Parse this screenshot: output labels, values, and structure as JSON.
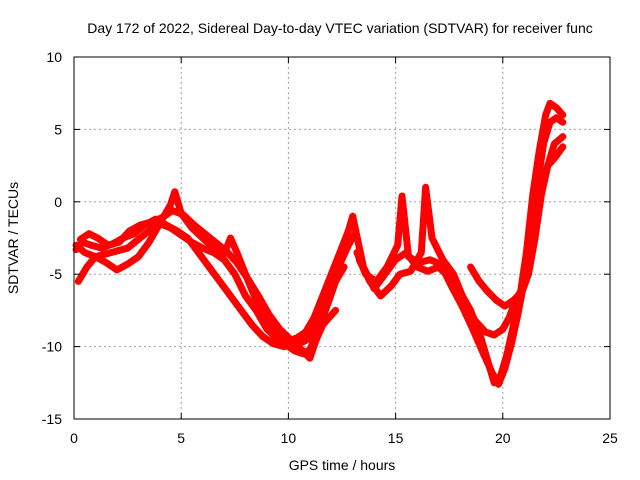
{
  "chart_data": {
    "type": "line",
    "title": "Day 172 of 2022, Sidereal Day-to-day VTEC variation (SDTVAR) for receiver func",
    "xlabel": "GPS time / hours",
    "ylabel": "SDTVAR / TECUs",
    "xlim": [
      0,
      25
    ],
    "ylim": [
      -15,
      10
    ],
    "x_ticks": [
      0,
      5,
      10,
      15,
      20,
      25
    ],
    "y_ticks": [
      -15,
      -10,
      -5,
      0,
      5,
      10
    ],
    "x_tick_labels": [
      "0",
      "5",
      "10",
      "15",
      "20",
      "25"
    ],
    "y_tick_labels": [
      "-15",
      "-10",
      "-5",
      "0",
      "5",
      "10"
    ],
    "grid": true,
    "legend": "none",
    "series_color": "#ff0000",
    "series": [
      {
        "name": "track-1",
        "x": [
          0.1,
          0.4,
          0.8,
          1.3,
          1.8,
          2.3,
          2.8,
          3.3,
          3.8,
          4.3,
          4.8,
          5.3,
          5.8,
          6.3,
          6.8,
          7.3,
          7.8,
          8.3,
          8.8,
          9.3,
          9.8,
          10.2,
          10.6,
          11.0,
          11.3,
          11.6,
          11.9,
          12.2
        ],
        "y": [
          -3.3,
          -2.8,
          -3.0,
          -3.2,
          -2.9,
          -2.5,
          -2.2,
          -1.6,
          -1.2,
          -1.6,
          -2.0,
          -2.5,
          -3.5,
          -4.5,
          -5.5,
          -6.5,
          -7.5,
          -8.5,
          -9.3,
          -9.8,
          -10.0,
          -9.7,
          -10.2,
          -10.8,
          -9.5,
          -8.5,
          -8.0,
          -7.5
        ]
      },
      {
        "name": "track-2",
        "x": [
          0.2,
          0.6,
          1.0,
          1.5,
          2.0,
          2.5,
          3.0,
          3.5,
          4.0,
          4.5,
          5.0,
          5.5,
          6.0,
          6.5,
          7.0,
          7.5,
          8.0,
          8.5,
          9.0,
          9.5,
          10.0,
          10.3,
          10.7,
          11.0,
          11.3,
          11.6,
          11.9,
          12.2,
          12.6
        ],
        "y": [
          -5.5,
          -4.5,
          -3.8,
          -3.6,
          -3.4,
          -3.2,
          -2.6,
          -2.0,
          -1.5,
          -1.8,
          -2.3,
          -2.8,
          -3.2,
          -3.5,
          -4.0,
          -5.0,
          -6.5,
          -7.5,
          -8.8,
          -9.5,
          -10.0,
          -10.3,
          -10.5,
          -10.2,
          -9.3,
          -8.0,
          -6.8,
          -5.5,
          -4.5
        ]
      },
      {
        "name": "track-3",
        "x": [
          0.3,
          0.7,
          1.1,
          1.6,
          2.1,
          2.6,
          3.1,
          3.6,
          4.1,
          4.6,
          5.1,
          5.6,
          6.1,
          6.6,
          7.1,
          7.6,
          8.1,
          8.6,
          9.1,
          9.6,
          10.1,
          10.5,
          10.9,
          11.2,
          11.6,
          12.0,
          12.4,
          12.8,
          13.1
        ],
        "y": [
          -2.6,
          -2.2,
          -2.5,
          -3.0,
          -2.8,
          -2.0,
          -1.6,
          -1.4,
          -1.1,
          -0.6,
          -0.9,
          -1.6,
          -2.2,
          -2.8,
          -3.4,
          -4.2,
          -5.3,
          -6.5,
          -7.8,
          -8.8,
          -9.5,
          -9.8,
          -9.5,
          -8.8,
          -7.2,
          -5.8,
          -4.3,
          -3.0,
          -2.2
        ]
      },
      {
        "name": "track-4",
        "x": [
          0.1,
          0.5,
          1.0,
          1.5,
          2.0,
          2.5,
          3.0,
          3.5,
          4.0,
          4.5,
          4.7,
          5.0,
          5.5,
          6.0,
          6.5,
          7.0,
          7.3,
          7.6,
          8.0,
          8.5,
          9.0,
          9.5,
          10.0,
          10.4,
          10.8,
          11.2,
          11.6,
          12.0,
          12.4,
          12.8,
          13.0
        ],
        "y": [
          -3.0,
          -3.5,
          -3.8,
          -4.2,
          -4.7,
          -4.3,
          -3.8,
          -2.8,
          -1.5,
          -0.2,
          0.7,
          -0.8,
          -1.8,
          -2.5,
          -3.2,
          -3.6,
          -2.5,
          -3.5,
          -5.0,
          -6.8,
          -8.3,
          -9.3,
          -9.6,
          -9.4,
          -9.0,
          -8.0,
          -6.5,
          -5.0,
          -3.5,
          -2.0,
          -1.0
        ]
      },
      {
        "name": "track-5",
        "x": [
          13.0,
          13.5,
          14.0,
          14.5,
          15.0,
          15.5,
          16.0,
          16.5,
          17.0,
          17.5,
          18.0,
          18.5,
          19.0,
          19.3,
          19.6,
          19.9,
          20.2,
          20.5,
          20.8,
          21.1,
          21.4,
          21.7,
          22.0,
          22.2,
          22.5,
          22.8
        ],
        "y": [
          -1.0,
          -4.5,
          -6.0,
          -5.0,
          -4.0,
          -3.5,
          -4.5,
          -4.8,
          -4.5,
          -5.2,
          -6.2,
          -7.5,
          -9.5,
          -11.0,
          -12.5,
          -12.0,
          -10.5,
          -8.5,
          -6.5,
          -3.5,
          0.5,
          3.5,
          6.0,
          6.8,
          6.5,
          6.0
        ]
      },
      {
        "name": "track-6",
        "x": [
          13.2,
          13.6,
          14.1,
          14.6,
          15.1,
          15.3,
          15.6,
          16.1,
          16.6,
          17.1,
          17.6,
          18.1,
          18.6,
          19.1,
          19.5,
          19.8,
          20.1,
          20.4,
          20.7,
          21.0,
          21.3,
          21.6,
          21.9,
          22.2,
          22.5,
          22.8
        ],
        "y": [
          -3.5,
          -5.0,
          -5.5,
          -4.5,
          -3.0,
          0.4,
          -3.8,
          -4.2,
          -4.0,
          -4.3,
          -5.8,
          -7.2,
          -8.8,
          -10.5,
          -11.8,
          -12.6,
          -11.5,
          -9.8,
          -7.8,
          -5.5,
          -2.0,
          1.0,
          4.0,
          5.5,
          5.8,
          5.5
        ]
      },
      {
        "name": "track-7",
        "x": [
          13.3,
          13.8,
          14.3,
          14.8,
          15.2,
          15.7,
          16.2,
          16.4,
          16.7,
          17.2,
          17.7,
          18.2,
          18.7,
          19.2,
          19.6,
          20.0,
          20.3,
          20.6,
          20.9,
          21.2,
          21.5,
          21.8,
          22.1,
          22.4,
          22.8
        ],
        "y": [
          -4.0,
          -5.5,
          -6.5,
          -5.8,
          -5.0,
          -4.8,
          -3.5,
          1.0,
          -2.5,
          -4.0,
          -5.0,
          -6.8,
          -8.2,
          -9.0,
          -9.2,
          -8.8,
          -8.0,
          -6.8,
          -6.0,
          -4.0,
          -1.5,
          1.0,
          2.5,
          3.0,
          3.8
        ]
      },
      {
        "name": "track-8",
        "x": [
          18.5,
          18.9,
          19.3,
          19.7,
          20.1,
          20.5,
          20.9,
          21.2,
          21.5,
          21.8,
          22.1,
          22.4,
          22.8
        ],
        "y": [
          -4.5,
          -5.5,
          -6.2,
          -6.8,
          -7.2,
          -6.8,
          -6.2,
          -5.0,
          -2.5,
          0.5,
          2.5,
          4.0,
          4.5
        ]
      }
    ]
  }
}
